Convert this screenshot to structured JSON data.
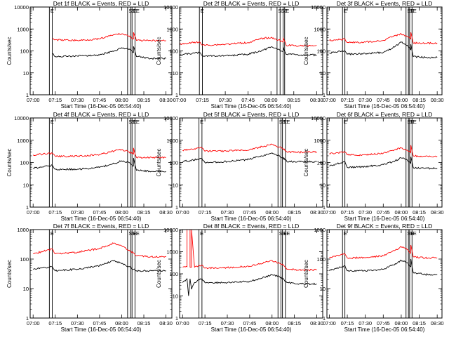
{
  "figure": {
    "xlabel": "Start Time (16-Dec-05 06:54:40)",
    "ylabel": "Counts/sec",
    "x_tick_labels": [
      "07:00",
      "07:15",
      "07:30",
      "07:45",
      "08:00",
      "08:15",
      "08:30"
    ],
    "y_tick_labels": [
      "1",
      "10",
      "100",
      "1000",
      "10000"
    ],
    "colors": {
      "events": "#000000",
      "lld": "#ff0000"
    }
  },
  "chart_data": [
    {
      "type": "line",
      "title": "Det 1f BLACK = Events, RED = LLD",
      "yscale": "log",
      "ylim": [
        1,
        10000
      ],
      "xlim": [
        "06:58",
        "08:34"
      ],
      "xticks": [
        "07:00",
        "07:15",
        "07:30",
        "07:45",
        "08:00",
        "08:15",
        "08:30"
      ],
      "vlines": [
        "07:11",
        "07:13",
        "08:04",
        "08:06",
        "08:07",
        "08:09"
      ],
      "flags": [
        "E",
        "S",
        "S",
        "E",
        "E"
      ],
      "series": [
        {
          "name": "Events",
          "color": "#000000",
          "x": [
            "07:13",
            "07:15",
            "07:30",
            "07:45",
            "07:55",
            "08:00",
            "08:05",
            "08:08",
            "08:08",
            "08:10",
            "08:20",
            "08:30"
          ],
          "y": [
            75,
            55,
            58,
            65,
            100,
            140,
            120,
            85,
            160,
            55,
            45,
            45
          ]
        },
        {
          "name": "LLD",
          "color": "#ff0000",
          "x": [
            "07:13",
            "07:15",
            "07:30",
            "07:45",
            "07:55",
            "08:00",
            "08:05",
            "08:08",
            "08:08",
            "08:10",
            "08:20",
            "08:30"
          ],
          "y": [
            360,
            320,
            300,
            350,
            550,
            600,
            480,
            350,
            700,
            300,
            290,
            300
          ]
        }
      ]
    },
    {
      "type": "line",
      "title": "Det 2f BLACK = Events, RED = LLD",
      "yscale": "log",
      "ylim": [
        1,
        10000
      ],
      "xlim": [
        "07:00",
        "08:34"
      ],
      "xticks": [
        "07:00",
        "07:15",
        "07:30",
        "07:45",
        "08:00",
        "08:15",
        "08:30"
      ],
      "vlines": [
        "07:13",
        "07:15",
        "08:04",
        "08:06",
        "08:08",
        "08:09"
      ],
      "flags": [
        "E",
        "S",
        "S",
        "E",
        "E"
      ],
      "series": [
        {
          "name": "Events",
          "color": "#000000",
          "x": [
            "07:00",
            "07:13",
            "07:15",
            "07:30",
            "07:45",
            "07:55",
            "08:00",
            "08:05",
            "08:08",
            "08:08",
            "08:10",
            "08:20",
            "08:30"
          ],
          "y": [
            65,
            85,
            60,
            60,
            70,
            110,
            150,
            120,
            90,
            150,
            70,
            65,
            65
          ]
        },
        {
          "name": "LLD",
          "color": "#ff0000",
          "x": [
            "07:00",
            "07:13",
            "07:15",
            "07:30",
            "07:45",
            "07:55",
            "08:00",
            "08:05",
            "08:08",
            "08:08",
            "08:10",
            "08:20",
            "08:30"
          ],
          "y": [
            200,
            260,
            180,
            200,
            240,
            380,
            400,
            320,
            250,
            380,
            180,
            170,
            180
          ]
        }
      ]
    },
    {
      "type": "line",
      "title": "Det 3f BLACK = Events, RED = LLD",
      "yscale": "log",
      "ylim": [
        1,
        10000
      ],
      "xlim": [
        "06:58",
        "08:34"
      ],
      "xticks": [
        "07:00",
        "07:15",
        "07:30",
        "07:45",
        "08:00",
        "08:15",
        "08:30"
      ],
      "vlines": [
        "07:11",
        "07:13",
        "08:04",
        "08:06",
        "08:07",
        "08:09"
      ],
      "flags": [
        "E",
        "S",
        "S",
        "E",
        "E"
      ],
      "series": [
        {
          "name": "Events",
          "color": "#000000",
          "x": [
            "07:00",
            "07:13",
            "07:15",
            "07:30",
            "07:45",
            "07:55",
            "08:00",
            "08:05",
            "08:08",
            "08:08",
            "08:10",
            "08:20",
            "08:30"
          ],
          "y": [
            80,
            100,
            70,
            75,
            85,
            160,
            250,
            180,
            110,
            200,
            55,
            50,
            50
          ]
        },
        {
          "name": "LLD",
          "color": "#ff0000",
          "x": [
            "07:00",
            "07:13",
            "07:15",
            "07:30",
            "07:45",
            "07:55",
            "08:00",
            "08:05",
            "08:08",
            "08:08",
            "08:10",
            "08:20",
            "08:30"
          ],
          "y": [
            300,
            350,
            240,
            250,
            300,
            500,
            600,
            450,
            350,
            700,
            230,
            220,
            230
          ]
        }
      ]
    },
    {
      "type": "line",
      "title": "Det 4f BLACK = Events, RED = LLD",
      "yscale": "log",
      "ylim": [
        1,
        10000
      ],
      "xlim": [
        "06:58",
        "08:34"
      ],
      "xticks": [
        "07:00",
        "07:15",
        "07:30",
        "07:45",
        "08:00",
        "08:15",
        "08:30"
      ],
      "vlines": [
        "07:11",
        "07:13",
        "08:04",
        "08:06",
        "08:07",
        "08:09"
      ],
      "flags": [
        "E",
        "S",
        "S",
        "E",
        "E"
      ],
      "series": [
        {
          "name": "Events",
          "color": "#000000",
          "x": [
            "07:00",
            "07:13",
            "07:15",
            "07:30",
            "07:45",
            "07:55",
            "08:00",
            "08:05",
            "08:08",
            "08:08",
            "08:10",
            "08:20",
            "08:30"
          ],
          "y": [
            55,
            75,
            50,
            50,
            60,
            90,
            120,
            100,
            70,
            160,
            45,
            40,
            40
          ]
        },
        {
          "name": "LLD",
          "color": "#ff0000",
          "x": [
            "07:00",
            "07:13",
            "07:15",
            "07:30",
            "07:45",
            "07:55",
            "08:00",
            "08:05",
            "08:08",
            "08:08",
            "08:10",
            "08:20",
            "08:30"
          ],
          "y": [
            220,
            260,
            190,
            190,
            230,
            330,
            380,
            300,
            240,
            450,
            170,
            170,
            170
          ]
        }
      ]
    },
    {
      "type": "line",
      "title": "Det 5f BLACK = Events, RED = LLD",
      "yscale": "log",
      "ylim": [
        1,
        10000
      ],
      "xlim": [
        "06:58",
        "08:34"
      ],
      "xticks": [
        "07:00",
        "07:15",
        "07:30",
        "07:45",
        "08:00",
        "08:15",
        "08:30"
      ],
      "vlines": [
        "07:11",
        "07:13",
        "08:04",
        "08:06",
        "08:07",
        "08:09"
      ],
      "flags": [
        "E",
        "S",
        "S",
        "E",
        "E"
      ],
      "series": [
        {
          "name": "Events",
          "color": "#000000",
          "x": [
            "07:00",
            "07:13",
            "07:15",
            "07:30",
            "07:45",
            "07:55",
            "08:00",
            "08:05",
            "08:08",
            "08:08",
            "08:10",
            "08:20",
            "08:30"
          ],
          "y": [
            110,
            150,
            100,
            110,
            140,
            220,
            270,
            200,
            140,
            160,
            110,
            110,
            110
          ]
        },
        {
          "name": "LLD",
          "color": "#ff0000",
          "x": [
            "07:00",
            "07:13",
            "07:15",
            "07:30",
            "07:45",
            "07:55",
            "08:00",
            "08:05",
            "08:08",
            "08:08",
            "08:10",
            "08:20",
            "08:30"
          ],
          "y": [
            350,
            450,
            320,
            330,
            380,
            550,
            650,
            500,
            380,
            420,
            300,
            290,
            300
          ]
        }
      ]
    },
    {
      "type": "line",
      "title": "Det 6f BLACK = Events, RED = LLD",
      "yscale": "log",
      "ylim": [
        1,
        10000
      ],
      "xlim": [
        "06:58",
        "08:34"
      ],
      "xticks": [
        "07:00",
        "07:15",
        "07:30",
        "07:45",
        "08:00",
        "08:15",
        "08:30"
      ],
      "vlines": [
        "07:11",
        "07:13",
        "08:04",
        "08:06",
        "08:07",
        "08:09"
      ],
      "flags": [
        "E",
        "S",
        "S",
        "E",
        "E"
      ],
      "series": [
        {
          "name": "Events",
          "color": "#000000",
          "x": [
            "07:00",
            "07:13",
            "07:15",
            "07:30",
            "07:45",
            "07:55",
            "08:00",
            "08:05",
            "08:08",
            "08:08",
            "08:10",
            "08:20",
            "08:30"
          ],
          "y": [
            70,
            110,
            60,
            65,
            80,
            120,
            160,
            130,
            90,
            180,
            60,
            55,
            55
          ]
        },
        {
          "name": "LLD",
          "color": "#ff0000",
          "x": [
            "07:00",
            "07:13",
            "07:15",
            "07:30",
            "07:45",
            "07:55",
            "08:00",
            "08:05",
            "08:08",
            "08:08",
            "08:10",
            "08:20",
            "08:30"
          ],
          "y": [
            250,
            300,
            220,
            220,
            260,
            380,
            450,
            360,
            280,
            600,
            200,
            190,
            190
          ]
        }
      ]
    },
    {
      "type": "line",
      "title": "Det 7f BLACK = Events, RED = LLD",
      "yscale": "log",
      "ylim": [
        1,
        1000
      ],
      "xlim": [
        "06:58",
        "08:34"
      ],
      "xticks": [
        "07:00",
        "07:15",
        "07:30",
        "07:45",
        "08:00",
        "08:15",
        "08:30"
      ],
      "vlines": [
        "07:11",
        "07:13",
        "08:04",
        "08:06",
        "08:07",
        "08:09"
      ],
      "flags": [
        "E",
        "S",
        "S",
        "E",
        "E"
      ],
      "series": [
        {
          "name": "Events",
          "color": "#000000",
          "x": [
            "07:00",
            "07:13",
            "07:15",
            "07:30",
            "07:45",
            "07:55",
            "08:00",
            "08:05",
            "08:08",
            "08:10",
            "08:20",
            "08:30"
          ],
          "y": [
            45,
            55,
            40,
            45,
            60,
            90,
            70,
            55,
            45,
            40,
            40,
            40
          ]
        },
        {
          "name": "LLD",
          "color": "#ff0000",
          "x": [
            "07:00",
            "07:13",
            "07:15",
            "07:30",
            "07:45",
            "07:55",
            "08:00",
            "08:05",
            "08:08",
            "08:10",
            "08:20",
            "08:30"
          ],
          "y": [
            150,
            220,
            150,
            170,
            230,
            350,
            280,
            200,
            160,
            130,
            120,
            120
          ]
        }
      ]
    },
    {
      "type": "line",
      "title": "Det 8f BLACK = Events, RED = LLD",
      "yscale": "log",
      "ylim": [
        1,
        10000
      ],
      "xlim": [
        "06:58",
        "08:34"
      ],
      "xticks": [
        "07:00",
        "07:15",
        "07:30",
        "07:45",
        "08:00",
        "08:15",
        "08:30"
      ],
      "vlines": [
        "07:11",
        "07:13",
        "08:04",
        "08:06",
        "08:07",
        "08:09"
      ],
      "flags": [
        "E",
        "S",
        "S",
        "E",
        "E"
      ],
      "series": [
        {
          "name": "Events",
          "color": "#000000",
          "x": [
            "07:00",
            "07:03",
            "07:04",
            "07:05",
            "07:06",
            "07:08",
            "07:10",
            "07:13",
            "07:15",
            "07:30",
            "07:45",
            "07:55",
            "08:00",
            "08:05",
            "08:08",
            "08:10",
            "08:20",
            "08:30"
          ],
          "y": [
            40,
            60,
            10,
            60,
            20,
            40,
            50,
            60,
            40,
            40,
            45,
            70,
            90,
            75,
            55,
            40,
            35,
            35
          ]
        },
        {
          "name": "LLD",
          "color": "#ff0000",
          "x": [
            "07:00",
            "07:03",
            "07:03",
            "07:05",
            "07:05",
            "07:06",
            "07:06",
            "07:08",
            "07:10",
            "07:13",
            "07:15",
            "07:30",
            "07:45",
            "07:55",
            "08:00",
            "08:05",
            "08:08",
            "08:10",
            "08:20",
            "08:30"
          ],
          "y": [
            200,
            210,
            10000,
            10000,
            200,
            200,
            10000,
            200,
            210,
            250,
            180,
            190,
            220,
            330,
            400,
            300,
            230,
            160,
            150,
            150
          ]
        }
      ]
    },
    {
      "type": "line",
      "title": "Det 9f BLACK = Events, RED = LLD",
      "yscale": "log",
      "ylim": [
        1,
        1000
      ],
      "xlim": [
        "06:58",
        "08:34"
      ],
      "xticks": [
        "07:00",
        "07:15",
        "07:30",
        "07:45",
        "08:00",
        "08:15",
        "08:30"
      ],
      "vlines": [
        "07:11",
        "07:13",
        "08:04",
        "08:06",
        "08:07",
        "08:09"
      ],
      "flags": [
        "E",
        "S",
        "S",
        "E",
        "E"
      ],
      "series": [
        {
          "name": "Events",
          "color": "#000000",
          "x": [
            "07:00",
            "07:13",
            "07:15",
            "07:30",
            "07:45",
            "07:55",
            "08:00",
            "08:05",
            "08:08",
            "08:08",
            "08:10",
            "08:20",
            "08:30"
          ],
          "y": [
            40,
            60,
            40,
            40,
            45,
            70,
            90,
            75,
            55,
            100,
            35,
            30,
            30
          ]
        },
        {
          "name": "LLD",
          "color": "#ff0000",
          "x": [
            "07:00",
            "07:13",
            "07:15",
            "07:30",
            "07:45",
            "07:55",
            "08:00",
            "08:05",
            "08:08",
            "08:08",
            "08:10",
            "08:20",
            "08:30"
          ],
          "y": [
            110,
            150,
            110,
            110,
            130,
            200,
            260,
            210,
            160,
            300,
            120,
            110,
            110
          ]
        }
      ]
    }
  ]
}
